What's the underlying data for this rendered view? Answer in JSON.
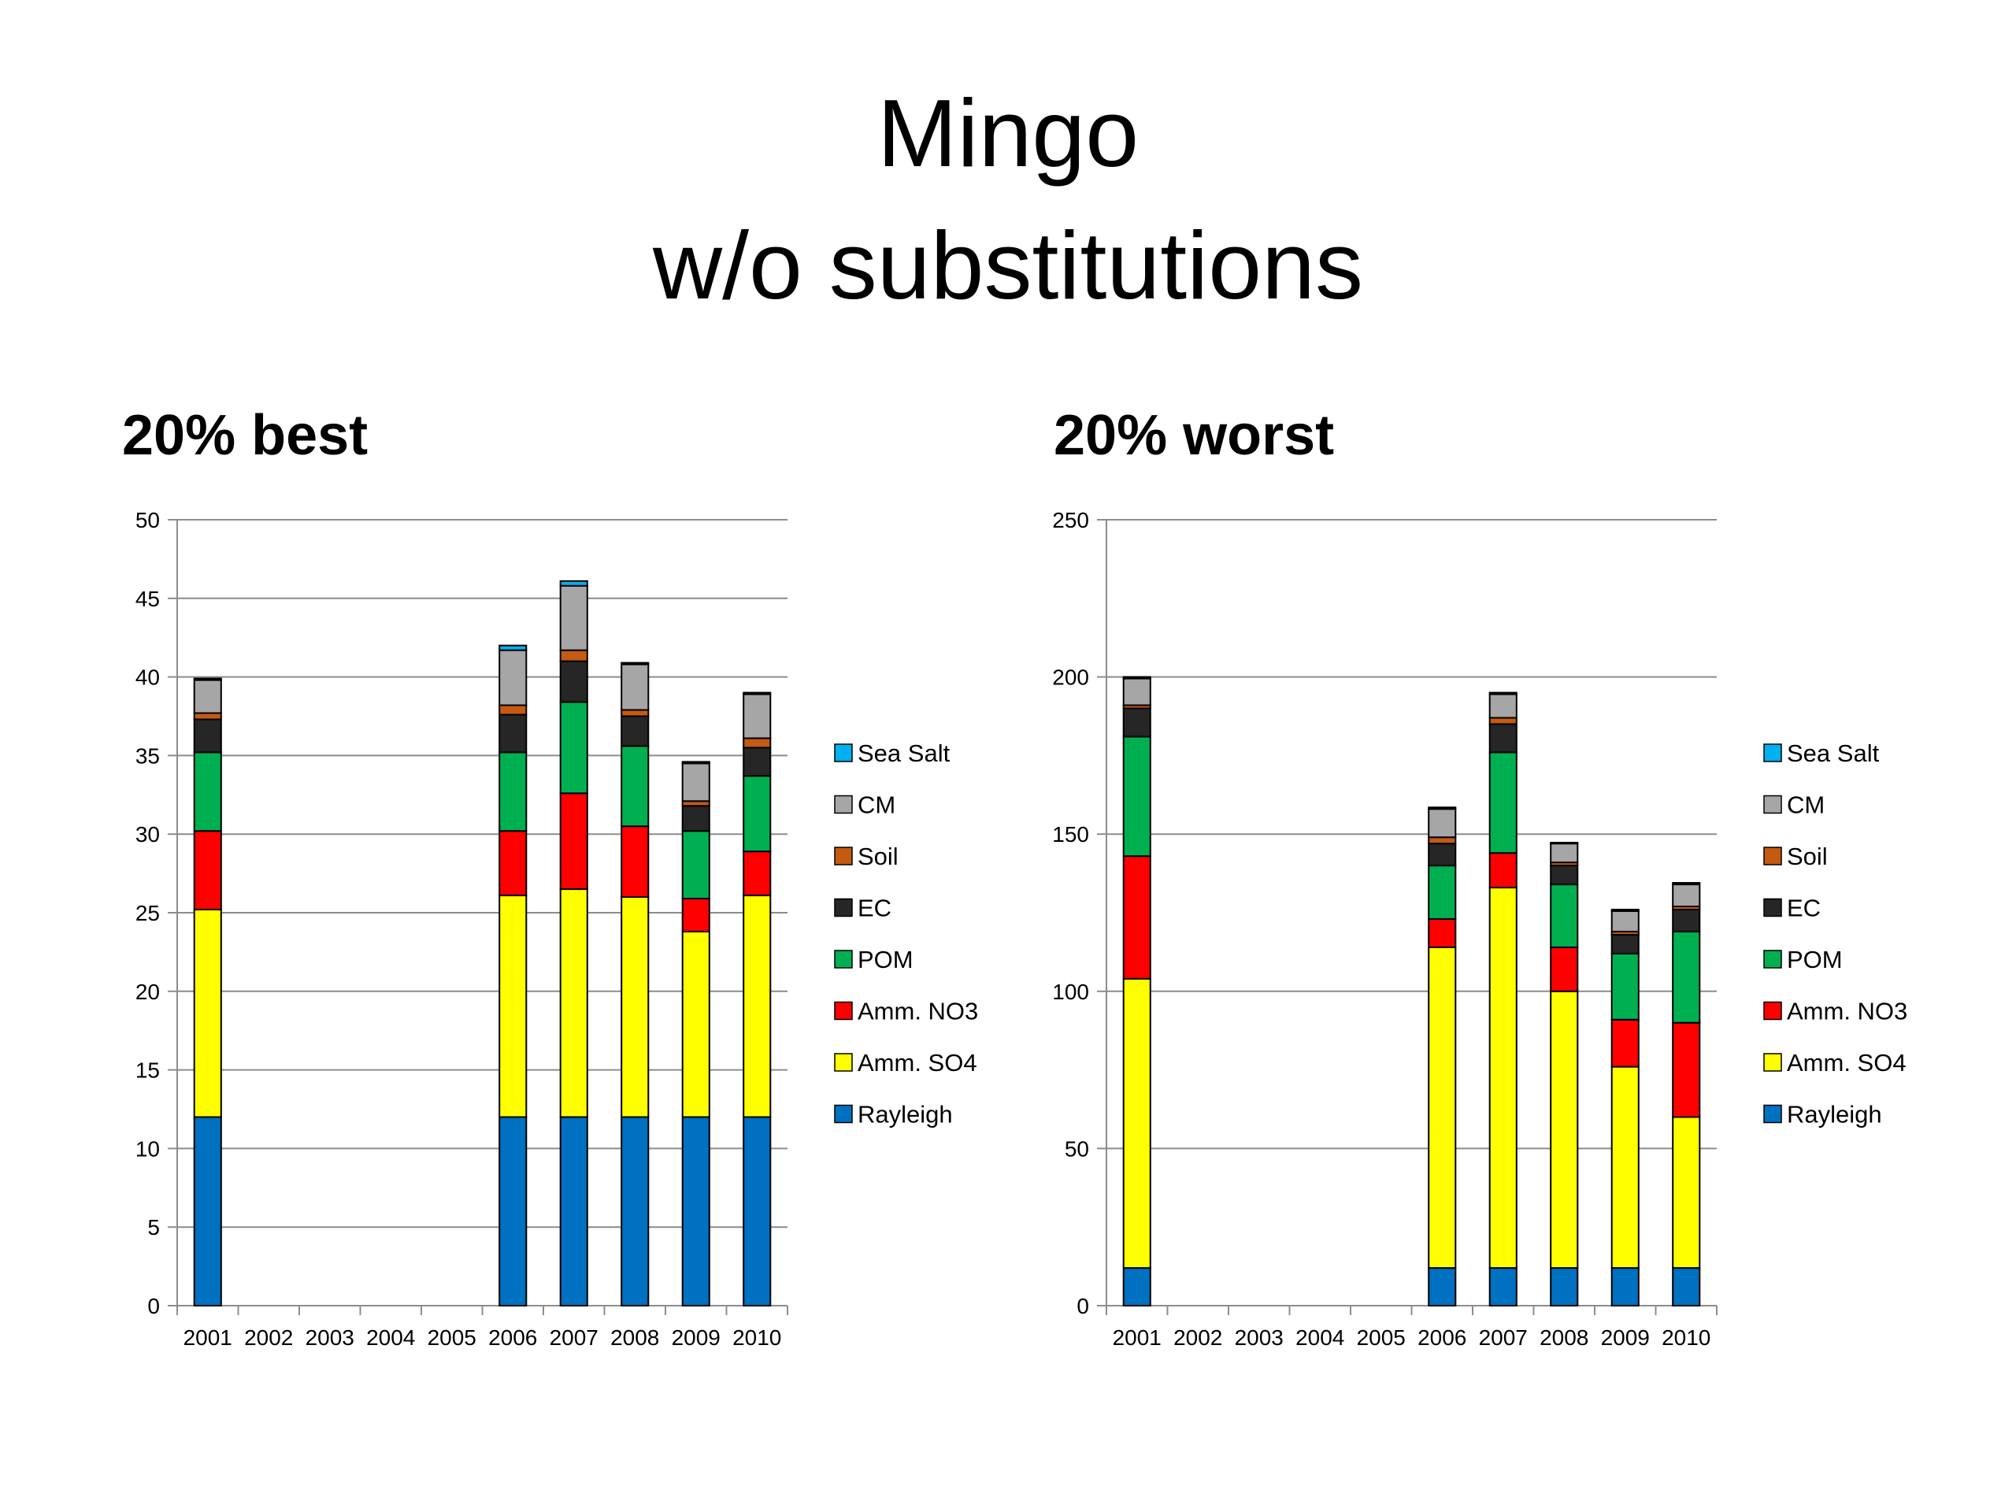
{
  "slide": {
    "title_line1": "Mingo",
    "title_line2": "w/o substitutions"
  },
  "colors": {
    "Rayleigh": "#0070c0",
    "Amm. SO4": "#ffff00",
    "Amm. NO3": "#ff0000",
    "POM": "#00b050",
    "EC": "#262626",
    "Soil": "#c55a11",
    "CM": "#a6a6a6",
    "Sea Salt": "#00b0f0"
  },
  "chart_data": [
    {
      "type": "bar",
      "stacked": true,
      "title": "20% best",
      "categories": [
        "2001",
        "2002",
        "2003",
        "2004",
        "2005",
        "2006",
        "2007",
        "2008",
        "2009",
        "2010"
      ],
      "ylim": [
        0,
        50
      ],
      "yticks": [
        0,
        5,
        10,
        15,
        20,
        25,
        30,
        35,
        40,
        45,
        50
      ],
      "grid": true,
      "legend_position": "right",
      "legend_order": [
        "Sea Salt",
        "CM",
        "Soil",
        "EC",
        "POM",
        "Amm. NO3",
        "Amm. SO4",
        "Rayleigh"
      ],
      "series": [
        {
          "name": "Rayleigh",
          "values": [
            12,
            0,
            0,
            0,
            0,
            12,
            12,
            12,
            12,
            12
          ]
        },
        {
          "name": "Amm. SO4",
          "values": [
            13.2,
            0,
            0,
            0,
            0,
            14.1,
            14.5,
            14.0,
            11.8,
            14.1
          ]
        },
        {
          "name": "Amm. NO3",
          "values": [
            5.0,
            0,
            0,
            0,
            0,
            4.1,
            6.1,
            4.5,
            2.1,
            2.8
          ]
        },
        {
          "name": "POM",
          "values": [
            5.0,
            0,
            0,
            0,
            0,
            5.0,
            5.8,
            5.1,
            4.3,
            4.8
          ]
        },
        {
          "name": "EC",
          "values": [
            2.1,
            0,
            0,
            0,
            0,
            2.4,
            2.6,
            1.9,
            1.6,
            1.8
          ]
        },
        {
          "name": "Soil",
          "values": [
            0.4,
            0,
            0,
            0,
            0,
            0.6,
            0.7,
            0.4,
            0.3,
            0.6
          ]
        },
        {
          "name": "CM",
          "values": [
            2.1,
            0,
            0,
            0,
            0,
            3.5,
            4.1,
            2.9,
            2.4,
            2.8
          ]
        },
        {
          "name": "Sea Salt",
          "values": [
            0.1,
            0,
            0,
            0,
            0,
            0.3,
            0.3,
            0.1,
            0.1,
            0.1
          ]
        }
      ]
    },
    {
      "type": "bar",
      "stacked": true,
      "title": "20% worst",
      "categories": [
        "2001",
        "2002",
        "2003",
        "2004",
        "2005",
        "2006",
        "2007",
        "2008",
        "2009",
        "2010"
      ],
      "ylim": [
        0,
        250
      ],
      "yticks": [
        0,
        50,
        100,
        150,
        200,
        250
      ],
      "grid": true,
      "legend_position": "right",
      "legend_order": [
        "Sea Salt",
        "CM",
        "Soil",
        "EC",
        "POM",
        "Amm. NO3",
        "Amm. SO4",
        "Rayleigh"
      ],
      "series": [
        {
          "name": "Rayleigh",
          "values": [
            12,
            0,
            0,
            0,
            0,
            12,
            12,
            12,
            12,
            12
          ]
        },
        {
          "name": "Amm. SO4",
          "values": [
            92,
            0,
            0,
            0,
            0,
            102,
            121,
            88,
            64,
            48
          ]
        },
        {
          "name": "Amm. NO3",
          "values": [
            39,
            0,
            0,
            0,
            0,
            9,
            11,
            14,
            15,
            30
          ]
        },
        {
          "name": "POM",
          "values": [
            38,
            0,
            0,
            0,
            0,
            17,
            32,
            20,
            21,
            29
          ]
        },
        {
          "name": "EC",
          "values": [
            9,
            0,
            0,
            0,
            0,
            7,
            9,
            6,
            6,
            7
          ]
        },
        {
          "name": "Soil",
          "values": [
            1,
            0,
            0,
            0,
            0,
            2,
            2,
            1,
            1,
            1
          ]
        },
        {
          "name": "CM",
          "values": [
            8.5,
            0,
            0,
            0,
            0,
            9,
            7.5,
            6,
            6.5,
            7
          ]
        },
        {
          "name": "Sea Salt",
          "values": [
            0.5,
            0,
            0,
            0,
            0,
            0.5,
            0.5,
            0.3,
            0.5,
            0.5
          ]
        }
      ]
    }
  ]
}
